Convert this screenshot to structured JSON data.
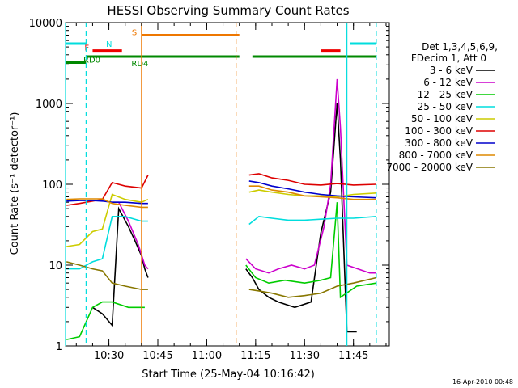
{
  "chart_data": {
    "type": "line",
    "title": "HESSI Observing Summary Count Rates",
    "xlabel": "Start Time (25-May-04 10:16:42)",
    "ylabel": "Count Rate (s⁻¹ detector⁻¹)",
    "yscale": "log",
    "ylim": [
      1,
      10000
    ],
    "xlim": [
      "10:16:42",
      "11:56:00"
    ],
    "x_ticks": [
      "10:30",
      "10:45",
      "11:00",
      "11:15",
      "11:30",
      "11:45"
    ],
    "y_ticks": [
      "1",
      "10",
      "100",
      "1000",
      "10000"
    ],
    "legend_position": "right",
    "legend_header": [
      "Det 1,3,4,5,6,9,",
      "FDecim 1, Att 0"
    ],
    "series": [
      {
        "name": "3 - 6 keV",
        "color": "#000000",
        "points": [
          [
            "10:25",
            3
          ],
          [
            "10:28",
            2.5
          ],
          [
            "10:31",
            1.8
          ],
          [
            "10:33",
            50
          ],
          [
            "10:36",
            30
          ],
          [
            "10:38",
            20
          ],
          [
            "10:40",
            13
          ],
          [
            "10:41",
            9
          ],
          [
            "10:42",
            7
          ],
          [
            "11:12",
            9
          ],
          [
            "11:14",
            7
          ],
          [
            "11:16",
            5
          ],
          [
            "11:19",
            4
          ],
          [
            "11:22",
            3.5
          ],
          [
            "11:27",
            3
          ],
          [
            "11:32",
            3.5
          ],
          [
            "11:35",
            25
          ],
          [
            "11:38",
            80
          ],
          [
            "11:40",
            1000
          ],
          [
            "11:41",
            200
          ],
          [
            "11:43",
            1.5
          ],
          [
            "11:46",
            1.5
          ]
        ]
      },
      {
        "name": "6 - 12 keV",
        "color": "#cc00cc",
        "points": [
          [
            "10:31",
            60
          ],
          [
            "10:33",
            60
          ],
          [
            "10:36",
            35
          ],
          [
            "10:39",
            18
          ],
          [
            "10:41",
            10
          ],
          [
            "10:42",
            9
          ],
          [
            "11:12",
            12
          ],
          [
            "11:15",
            9
          ],
          [
            "11:19",
            8
          ],
          [
            "11:22",
            9
          ],
          [
            "11:26",
            10
          ],
          [
            "11:30",
            9
          ],
          [
            "11:33",
            10
          ],
          [
            "11:36",
            30
          ],
          [
            "11:38",
            100
          ],
          [
            "11:40",
            2000
          ],
          [
            "11:41",
            500
          ],
          [
            "11:43",
            10
          ],
          [
            "11:50",
            8
          ],
          [
            "11:52",
            8
          ]
        ]
      },
      {
        "name": "12 - 25 keV",
        "color": "#00cc00",
        "points": [
          [
            "10:17",
            1.2
          ],
          [
            "10:21",
            1.3
          ],
          [
            "10:25",
            3
          ],
          [
            "10:28",
            3.5
          ],
          [
            "10:31",
            3.5
          ],
          [
            "10:36",
            3
          ],
          [
            "10:41",
            3
          ],
          [
            "11:12",
            10
          ],
          [
            "11:15",
            7
          ],
          [
            "11:19",
            6
          ],
          [
            "11:24",
            6.5
          ],
          [
            "11:30",
            6
          ],
          [
            "11:35",
            6.5
          ],
          [
            "11:38",
            7
          ],
          [
            "11:40",
            60
          ],
          [
            "11:41",
            4
          ],
          [
            "11:46",
            5.5
          ],
          [
            "11:52",
            6
          ]
        ]
      },
      {
        "name": "25 - 50 keV",
        "color": "#00dddd",
        "points": [
          [
            "10:17",
            9
          ],
          [
            "10:21",
            9
          ],
          [
            "10:25",
            11
          ],
          [
            "10:28",
            12
          ],
          [
            "10:31",
            40
          ],
          [
            "10:35",
            40
          ],
          [
            "10:40",
            35
          ],
          [
            "10:42",
            35
          ],
          [
            "11:13",
            32
          ],
          [
            "11:16",
            40
          ],
          [
            "11:20",
            38
          ],
          [
            "11:25",
            36
          ],
          [
            "11:30",
            36
          ],
          [
            "11:35",
            37
          ],
          [
            "11:40",
            38
          ],
          [
            "11:45",
            38
          ],
          [
            "11:52",
            40
          ]
        ]
      },
      {
        "name": "50 - 100 keV",
        "color": "#cccc00",
        "points": [
          [
            "10:17",
            17
          ],
          [
            "10:21",
            18
          ],
          [
            "10:25",
            26
          ],
          [
            "10:28",
            28
          ],
          [
            "10:31",
            75
          ],
          [
            "10:35",
            65
          ],
          [
            "10:40",
            60
          ],
          [
            "10:42",
            65
          ],
          [
            "11:13",
            80
          ],
          [
            "11:16",
            85
          ],
          [
            "11:20",
            80
          ],
          [
            "11:25",
            75
          ],
          [
            "11:30",
            72
          ],
          [
            "11:35",
            72
          ],
          [
            "11:40",
            70
          ],
          [
            "11:45",
            75
          ],
          [
            "11:52",
            78
          ]
        ]
      },
      {
        "name": "100 - 300 keV",
        "color": "#dd0000",
        "points": [
          [
            "10:17",
            55
          ],
          [
            "10:21",
            58
          ],
          [
            "10:25",
            62
          ],
          [
            "10:28",
            65
          ],
          [
            "10:31",
            105
          ],
          [
            "10:35",
            95
          ],
          [
            "10:40",
            90
          ],
          [
            "10:42",
            130
          ],
          [
            "11:13",
            130
          ],
          [
            "11:16",
            135
          ],
          [
            "11:20",
            120
          ],
          [
            "11:25",
            112
          ],
          [
            "11:30",
            100
          ],
          [
            "11:35",
            98
          ],
          [
            "11:40",
            102
          ],
          [
            "11:45",
            98
          ],
          [
            "11:52",
            100
          ]
        ]
      },
      {
        "name": "300 - 800 keV",
        "color": "#0000cc",
        "points": [
          [
            "10:17",
            62
          ],
          [
            "10:21",
            63
          ],
          [
            "10:25",
            63
          ],
          [
            "10:28",
            62
          ],
          [
            "10:31",
            60
          ],
          [
            "10:35",
            60
          ],
          [
            "10:40",
            58
          ],
          [
            "10:42",
            58
          ],
          [
            "11:13",
            110
          ],
          [
            "11:16",
            105
          ],
          [
            "11:20",
            95
          ],
          [
            "11:25",
            88
          ],
          [
            "11:30",
            80
          ],
          [
            "11:35",
            75
          ],
          [
            "11:40",
            72
          ],
          [
            "11:45",
            70
          ],
          [
            "11:52",
            68
          ]
        ]
      },
      {
        "name": "800 - 7000 keV",
        "color": "#dd8800",
        "points": [
          [
            "10:17",
            65
          ],
          [
            "10:21",
            66
          ],
          [
            "10:25",
            66
          ],
          [
            "10:28",
            66
          ],
          [
            "10:31",
            58
          ],
          [
            "10:35",
            55
          ],
          [
            "10:40",
            52
          ],
          [
            "10:42",
            52
          ],
          [
            "11:13",
            95
          ],
          [
            "11:16",
            95
          ],
          [
            "11:20",
            85
          ],
          [
            "11:25",
            80
          ],
          [
            "11:30",
            72
          ],
          [
            "11:35",
            70
          ],
          [
            "11:40",
            68
          ],
          [
            "11:45",
            65
          ],
          [
            "11:52",
            65
          ]
        ]
      },
      {
        "name": "7000 - 20000 keV",
        "color": "#887700",
        "points": [
          [
            "10:17",
            11
          ],
          [
            "10:21",
            10
          ],
          [
            "10:25",
            9
          ],
          [
            "10:28",
            8.5
          ],
          [
            "10:31",
            6
          ],
          [
            "10:35",
            5.5
          ],
          [
            "10:40",
            5
          ],
          [
            "10:42",
            5
          ],
          [
            "11:13",
            5
          ],
          [
            "11:16",
            4.8
          ],
          [
            "11:20",
            4.5
          ],
          [
            "11:25",
            4
          ],
          [
            "11:30",
            4.2
          ],
          [
            "11:35",
            4.5
          ],
          [
            "11:40",
            5.5
          ],
          [
            "11:45",
            6
          ],
          [
            "11:52",
            7
          ]
        ]
      }
    ],
    "state_bars": [
      {
        "label": "N",
        "color": "#00dddd",
        "segments": [
          [
            "10:16:42",
            "10:23"
          ],
          [
            "11:44",
            "11:52"
          ]
        ],
        "level": 5500
      },
      {
        "label": "F",
        "color": "#ee0000",
        "segments": [
          [
            "10:25",
            "10:34"
          ],
          [
            "11:35",
            "11:41"
          ]
        ],
        "level": 4500
      },
      {
        "label": "S",
        "color": "#ee7700",
        "segments": [
          [
            "10:40",
            "11:10"
          ]
        ],
        "level": 7000
      },
      {
        "label": "RD0",
        "color": "#008800",
        "segments": [
          [
            "10:16:42",
            "10:23"
          ]
        ],
        "level": 3200
      },
      {
        "label": "RD4",
        "color": "#008800",
        "segments": [
          [
            "10:23",
            "10:40"
          ],
          [
            "10:40",
            "11:10"
          ],
          [
            "11:14",
            "11:52"
          ]
        ],
        "level": 3800
      }
    ],
    "vlines": [
      {
        "time": "10:16:42",
        "color": "#00dddd",
        "style": "solid"
      },
      {
        "time": "10:23",
        "color": "#00dddd",
        "style": "dashed"
      },
      {
        "time": "10:40",
        "color": "#ee7700",
        "style": "solid"
      },
      {
        "time": "11:09",
        "color": "#ee7700",
        "style": "dashed"
      },
      {
        "time": "11:43",
        "color": "#00dddd",
        "style": "solid"
      },
      {
        "time": "11:52",
        "color": "#00dddd",
        "style": "dashed"
      }
    ]
  },
  "footer_timestamp": "16-Apr-2010 00:48"
}
